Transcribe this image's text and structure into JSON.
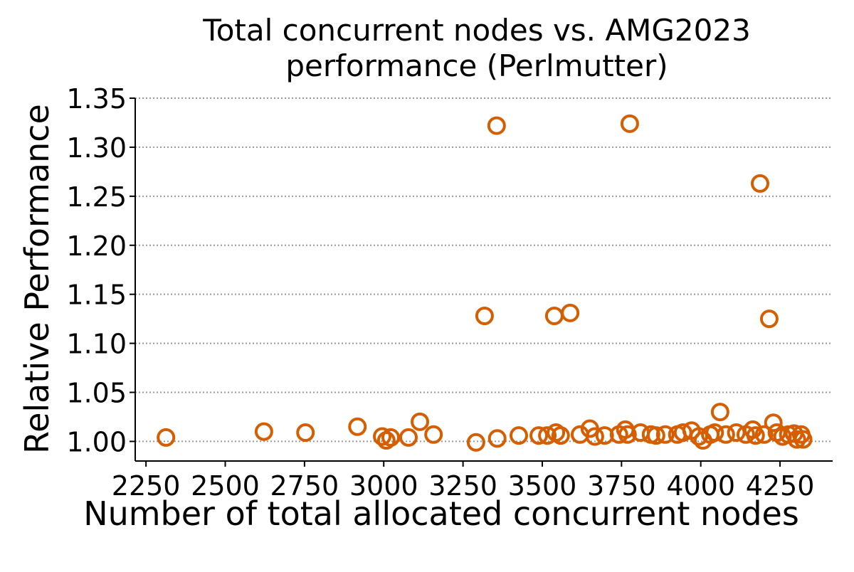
{
  "chart_data": {
    "type": "scatter",
    "title": "Total concurrent nodes vs. AMG2023 performance (Perlmutter)",
    "x_label": "Number of total allocated concurrent nodes",
    "y_label": "Relative Performance",
    "series": [
      {
        "color": "#d55e00",
        "x": [
          2313,
          2622,
          2753,
          2917,
          2995,
          3008,
          3022,
          3078,
          3114,
          3157,
          3291,
          3318,
          3356,
          3358,
          3426,
          3489,
          3516,
          3538,
          3543,
          3558,
          3588,
          3619,
          3650,
          3666,
          3697,
          3742,
          3762,
          3769,
          3776,
          3810,
          3843,
          3859,
          3888,
          3926,
          3944,
          3971,
          3994,
          4007,
          4030,
          4044,
          4061,
          4079,
          4112,
          4142,
          4164,
          4173,
          4187,
          4200,
          4216,
          4229,
          4240,
          4258,
          4276,
          4294,
          4303,
          4317,
          4323
        ],
        "values": [
          1.004,
          1.01,
          1.009,
          1.015,
          1.005,
          1.001,
          1.004,
          1.004,
          1.02,
          1.007,
          0.999,
          1.128,
          1.322,
          1.003,
          1.006,
          1.006,
          1.006,
          1.128,
          1.009,
          1.006,
          1.131,
          1.007,
          1.013,
          1.005,
          1.006,
          1.007,
          1.012,
          1.007,
          1.324,
          1.009,
          1.007,
          1.006,
          1.007,
          1.007,
          1.009,
          1.011,
          1.005,
          1.001,
          1.007,
          1.009,
          1.03,
          1.007,
          1.009,
          1.007,
          1.012,
          1.006,
          1.263,
          1.007,
          1.125,
          1.019,
          1.009,
          1.005,
          1.007,
          1.008,
          1.002,
          1.007,
          1.002
        ]
      }
    ],
    "xlim": [
      2216,
      4416
    ],
    "ylim": [
      0.98,
      1.35
    ],
    "xticks": [
      2250,
      2500,
      2750,
      3000,
      3250,
      3500,
      3750,
      4000,
      4250
    ],
    "yticks": [
      {
        "value": 1.0,
        "label": "1.00"
      },
      1.05,
      {
        "value": 1.1,
        "label": "1.10"
      },
      1.15,
      {
        "value": 1.2,
        "label": "1.20"
      },
      1.25,
      {
        "value": 1.3,
        "label": "1.30"
      },
      1.35
    ],
    "grid": "y"
  }
}
